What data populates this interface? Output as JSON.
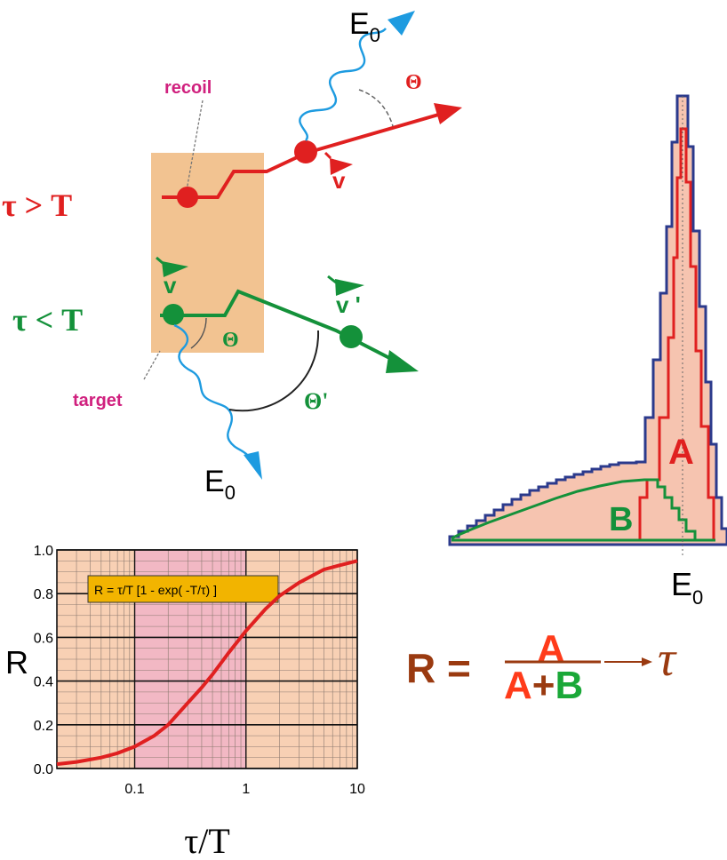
{
  "colors": {
    "red": "#e02020",
    "green": "#14913a",
    "blue": "#1e9be0",
    "magenta": "#d0207e",
    "target_fill": "#f2c391",
    "peak_fill": "#f6c4b0",
    "hist_outline": "#2b3a8c",
    "formula_brown": "#9a3a10",
    "formula_A": "#ff3b1a",
    "formula_B": "#1aa838",
    "box_yellow": "#f2b400"
  },
  "diagram": {
    "label_recoil": "recoil",
    "label_target": "target",
    "tau_gt_T": "τ > T",
    "tau_lt_T": "τ < T",
    "photon_top": "E",
    "photon_bottom": "E",
    "photon_sub": "0",
    "theta": "Θ",
    "theta_prime": "Θ'",
    "v_label": "v",
    "v_prime_label": "v '"
  },
  "spectrum": {
    "peak_label": "A",
    "tail_label": "B",
    "axis_label": "E",
    "axis_sub": "0"
  },
  "formula": {
    "lhs": "R =",
    "numerator": "A",
    "denominator_A": "A",
    "denominator_plus": "+",
    "denominator_B": "B",
    "result": "τ"
  },
  "chart_data": {
    "type": "line",
    "xscale": "log",
    "xlim": [
      0.02,
      10
    ],
    "ylim": [
      0.0,
      1.0
    ],
    "xlabel": "τ/T",
    "ylabel": "R",
    "xticks": [
      "0.1",
      "1",
      "10"
    ],
    "xtick_values": [
      0.1,
      1,
      10
    ],
    "yticks": [
      "0.0",
      "0.2",
      "0.4",
      "0.6",
      "0.8",
      "1.0"
    ],
    "ytick_values": [
      0.0,
      0.2,
      0.4,
      0.6,
      0.8,
      1.0
    ],
    "annotation": "R = τ/T [1 - exp( -T/τ) ]",
    "grid": true,
    "series": [
      {
        "x": [
          0.02,
          0.03,
          0.05,
          0.07,
          0.1,
          0.15,
          0.2,
          0.3,
          0.4,
          0.5,
          0.7,
          1.0,
          1.5,
          2.0,
          3.0,
          5.0,
          7.0,
          10.0
        ],
        "y": [
          0.02,
          0.03,
          0.05,
          0.07,
          0.1,
          0.15,
          0.2,
          0.3,
          0.37,
          0.43,
          0.53,
          0.63,
          0.73,
          0.79,
          0.85,
          0.91,
          0.93,
          0.95
        ]
      }
    ]
  }
}
